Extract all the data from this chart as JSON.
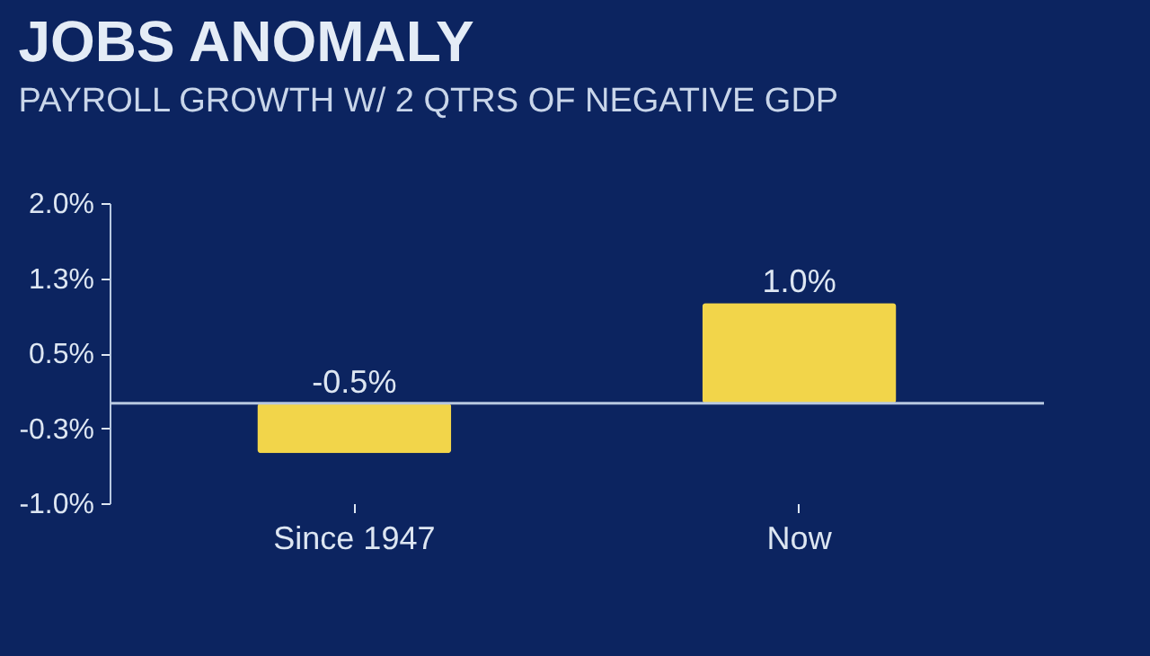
{
  "chart_data": {
    "type": "bar",
    "title": "JOBS ANOMALY",
    "subtitle": "PAYROLL GROWTH W/ 2 QTRS OF NEGATIVE GDP",
    "categories": [
      "Since 1947",
      "Now"
    ],
    "values": [
      -0.5,
      1.0
    ],
    "value_labels": [
      "-0.5%",
      "1.0%"
    ],
    "color": "#f2d54a",
    "ylim": [
      -1.0,
      2.0
    ],
    "yticks": [
      {
        "value": -1.0,
        "label": "-1.0%"
      },
      {
        "value": -0.25,
        "label": "-0.3%"
      },
      {
        "value": 0.5,
        "label": "0.5%"
      },
      {
        "value": 1.25,
        "label": "1.3%"
      },
      {
        "value": 2.0,
        "label": "2.0%"
      }
    ],
    "ref_lines": [
      {
        "axis": "y",
        "value": 0,
        "label": null
      }
    ],
    "grid": false
  }
}
